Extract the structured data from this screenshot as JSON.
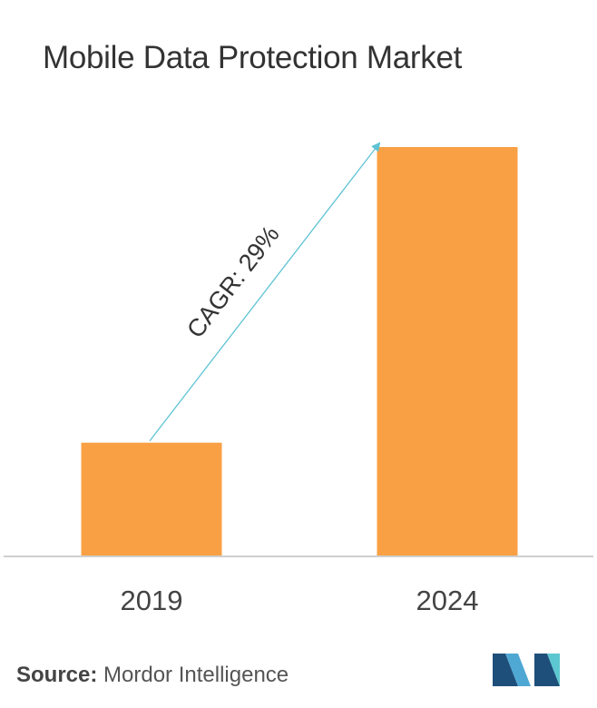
{
  "title": "Mobile Data Protection Market",
  "source": {
    "label": "Source:",
    "text": "Mordor Intelligence"
  },
  "logo": {
    "icon": "mordor-intelligence-logo-icon",
    "colors": [
      "#1e4f7a",
      "#4fa8d4",
      "#5cc7d1"
    ]
  },
  "colors": {
    "bar": "#f9a045",
    "axis": "#cfcfcf",
    "arrow": "#5ec3d4",
    "text": "#333333"
  },
  "chart_data": {
    "type": "bar",
    "title": "Mobile Data Protection Market",
    "categories": [
      "2019",
      "2024"
    ],
    "values": [
      1,
      3.6
    ],
    "annotation": "CAGR: 29%",
    "xlabel": "",
    "ylabel": "",
    "ylim": [
      0,
      4.2
    ],
    "grid": false,
    "legend": "none"
  }
}
